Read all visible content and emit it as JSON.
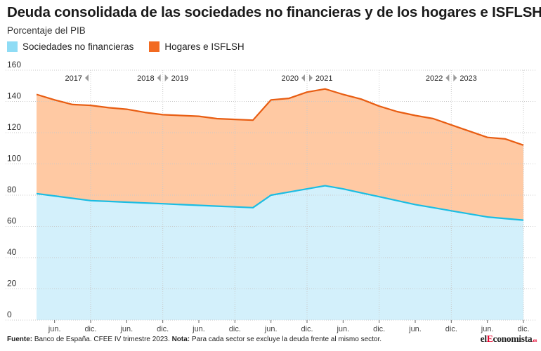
{
  "header": {
    "title": "Deuda consolidada de las sociedades no financieras y de los hogares e ISFLSH",
    "subtitle": "Porcentaje del PIB"
  },
  "legend": [
    {
      "label": "Sociedades no financieras",
      "color": "#8fdcf5"
    },
    {
      "label": "Hogares e ISFLSH",
      "color": "#f26a21"
    }
  ],
  "footer": {
    "source_label": "Fuente:",
    "source_text": "Banco de España. CFEE IV trimestre 2023.",
    "note_label": "Nota:",
    "note_text": "Para cada sector se excluye la deuda frente al mismo sector."
  },
  "logo": {
    "pre": "el",
    "accent": "E",
    "rest": "conomista",
    "domain": ".es"
  },
  "colors": {
    "total_line": "#e85d12",
    "total_fill": "#ffc9a3",
    "sociedades_line": "#1bbde3",
    "sociedades_fill": "#d3f0fb",
    "grid": "#c9c9c9"
  },
  "chart_data": {
    "type": "area",
    "stacked": true,
    "title": "Deuda consolidada de las sociedades no financieras y de los hogares e ISFLSH",
    "subtitle": "Porcentaje del PIB",
    "ylim": [
      0,
      160
    ],
    "yticks": [
      0,
      20,
      40,
      60,
      80,
      100,
      120,
      140,
      160
    ],
    "x_tick_labels": [
      "jun.",
      "dic.",
      "jun.",
      "dic.",
      "jun.",
      "dic.",
      "jun.",
      "dic.",
      "jun.",
      "dic.",
      "jun.",
      "dic.",
      "jun.",
      "dic."
    ],
    "year_labels": [
      {
        "label": "2017",
        "arrow": "left"
      },
      {
        "label": "2018",
        "arrow": "left"
      },
      {
        "label": "2019",
        "arrow": "right"
      },
      {
        "label": "2020",
        "arrow": "left"
      },
      {
        "label": "2021",
        "arrow": "right"
      },
      {
        "label": "2022",
        "arrow": "left"
      },
      {
        "label": "2023",
        "arrow": "right"
      }
    ],
    "x": [
      "2017-03",
      "2017-06",
      "2017-09",
      "2017-12",
      "2018-03",
      "2018-06",
      "2018-09",
      "2018-12",
      "2019-03",
      "2019-06",
      "2019-09",
      "2019-12",
      "2020-03",
      "2020-06",
      "2020-09",
      "2020-12",
      "2021-03",
      "2021-06",
      "2021-09",
      "2021-12",
      "2022-03",
      "2022-06",
      "2022-09",
      "2022-12",
      "2023-03",
      "2023-06",
      "2023-09",
      "2023-12"
    ],
    "series": [
      {
        "name": "Sociedades no financieras",
        "values": [
          81,
          79.5,
          78,
          76.5,
          76,
          75.5,
          75,
          74.5,
          74,
          73.5,
          73,
          72.5,
          72,
          80,
          82,
          84,
          86,
          84,
          81.5,
          79,
          76.5,
          74,
          72,
          70,
          68,
          66,
          65,
          64
        ]
      },
      {
        "name": "Hogares e ISFLSH",
        "values": [
          63.5,
          61.5,
          60,
          61,
          60,
          59.5,
          58,
          57,
          57,
          57,
          56,
          56,
          56,
          61,
          60,
          62,
          62,
          60.5,
          60,
          58,
          57,
          57,
          57,
          55,
          53,
          51,
          51,
          48
        ]
      }
    ]
  }
}
